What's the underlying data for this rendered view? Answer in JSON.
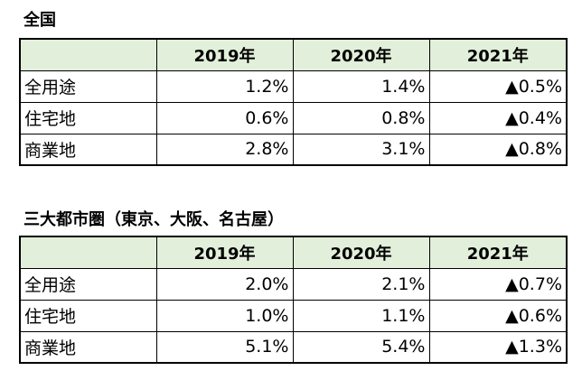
{
  "sections": [
    {
      "title": "全国",
      "headers": [
        "",
        "2019年",
        "2020年",
        "2021年"
      ],
      "rows": [
        {
          "label": "全用途",
          "v2019": "1.2%",
          "v2020": "1.4%",
          "v2021": "▲0.5%"
        },
        {
          "label": "住宅地",
          "v2019": "0.6%",
          "v2020": "0.8%",
          "v2021": "▲0.4%"
        },
        {
          "label": "商業地",
          "v2019": "2.8%",
          "v2020": "3.1%",
          "v2021": "▲0.8%"
        }
      ]
    },
    {
      "title": "三大都市圏（東京、大阪、名古屋）",
      "headers": [
        "",
        "2019年",
        "2020年",
        "2021年"
      ],
      "rows": [
        {
          "label": "全用途",
          "v2019": "2.0%",
          "v2020": "2.1%",
          "v2021": "▲0.7%"
        },
        {
          "label": "住宅地",
          "v2019": "1.0%",
          "v2020": "1.1%",
          "v2021": "▲0.6%"
        },
        {
          "label": "商業地",
          "v2019": "5.1%",
          "v2020": "5.4%",
          "v2021": "▲1.3%"
        }
      ]
    }
  ],
  "colors": {
    "header_background": "#e2efda",
    "border": "#000000"
  }
}
